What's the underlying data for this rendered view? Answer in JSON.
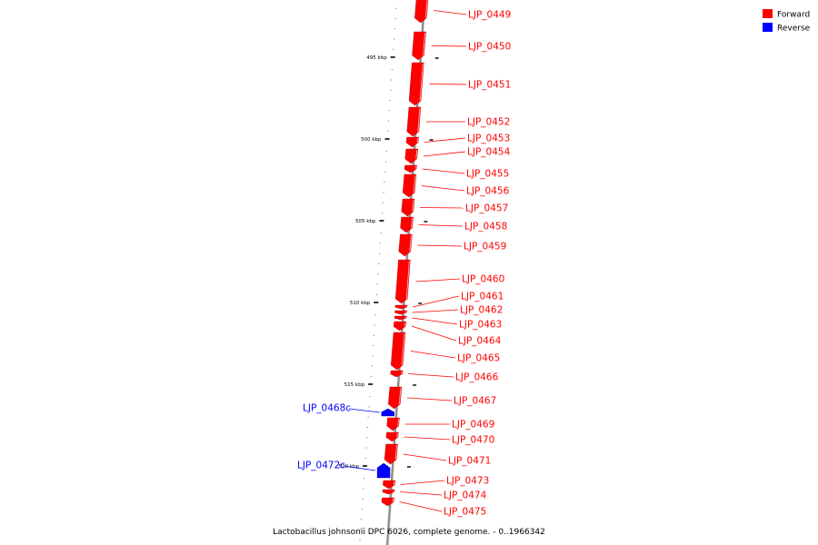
{
  "colors": {
    "forward": "#ff0000",
    "reverse": "#0000ff",
    "backbone": "#8c8c8c",
    "tick": "#000000"
  },
  "legend": [
    {
      "label": "Forward",
      "strand": "forward",
      "color": "#ff0000"
    },
    {
      "label": "Reverse",
      "strand": "reverse",
      "color": "#0000ff"
    }
  ],
  "caption": "Lactobacillus johnsonii DPC 6026, complete genome. - 0..1966342",
  "ticks": [
    {
      "label": "495 kbp"
    },
    {
      "label": "500 kbp"
    },
    {
      "label": "505 kbp"
    },
    {
      "label": "510 kbp"
    },
    {
      "label": "515 kbp"
    },
    {
      "label": "520 kbp"
    }
  ],
  "genes": [
    {
      "id": "LJP_0449",
      "strand": "forward"
    },
    {
      "id": "LJP_0450",
      "strand": "forward"
    },
    {
      "id": "LJP_0451",
      "strand": "forward"
    },
    {
      "id": "LJP_0452",
      "strand": "forward"
    },
    {
      "id": "LJP_0453",
      "strand": "forward"
    },
    {
      "id": "LJP_0454",
      "strand": "forward"
    },
    {
      "id": "LJP_0455",
      "strand": "forward"
    },
    {
      "id": "LJP_0456",
      "strand": "forward"
    },
    {
      "id": "LJP_0457",
      "strand": "forward"
    },
    {
      "id": "LJP_0458",
      "strand": "forward"
    },
    {
      "id": "LJP_0459",
      "strand": "forward"
    },
    {
      "id": "LJP_0460",
      "strand": "forward"
    },
    {
      "id": "LJP_0461",
      "strand": "forward"
    },
    {
      "id": "LJP_0462",
      "strand": "forward"
    },
    {
      "id": "LJP_0463",
      "strand": "forward"
    },
    {
      "id": "LJP_0464",
      "strand": "forward"
    },
    {
      "id": "LJP_0465",
      "strand": "forward"
    },
    {
      "id": "LJP_0466",
      "strand": "forward"
    },
    {
      "id": "LJP_0467",
      "strand": "forward"
    },
    {
      "id": "LJP_0468c",
      "strand": "reverse"
    },
    {
      "id": "LJP_0469",
      "strand": "forward"
    },
    {
      "id": "LJP_0470",
      "strand": "forward"
    },
    {
      "id": "LJP_0471",
      "strand": "forward"
    },
    {
      "id": "LJP_0472c",
      "strand": "reverse"
    },
    {
      "id": "LJP_0473",
      "strand": "forward"
    },
    {
      "id": "LJP_0474",
      "strand": "forward"
    },
    {
      "id": "LJP_0475",
      "strand": "forward"
    }
  ]
}
